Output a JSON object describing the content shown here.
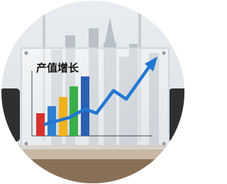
{
  "title": "产值增长"
}
